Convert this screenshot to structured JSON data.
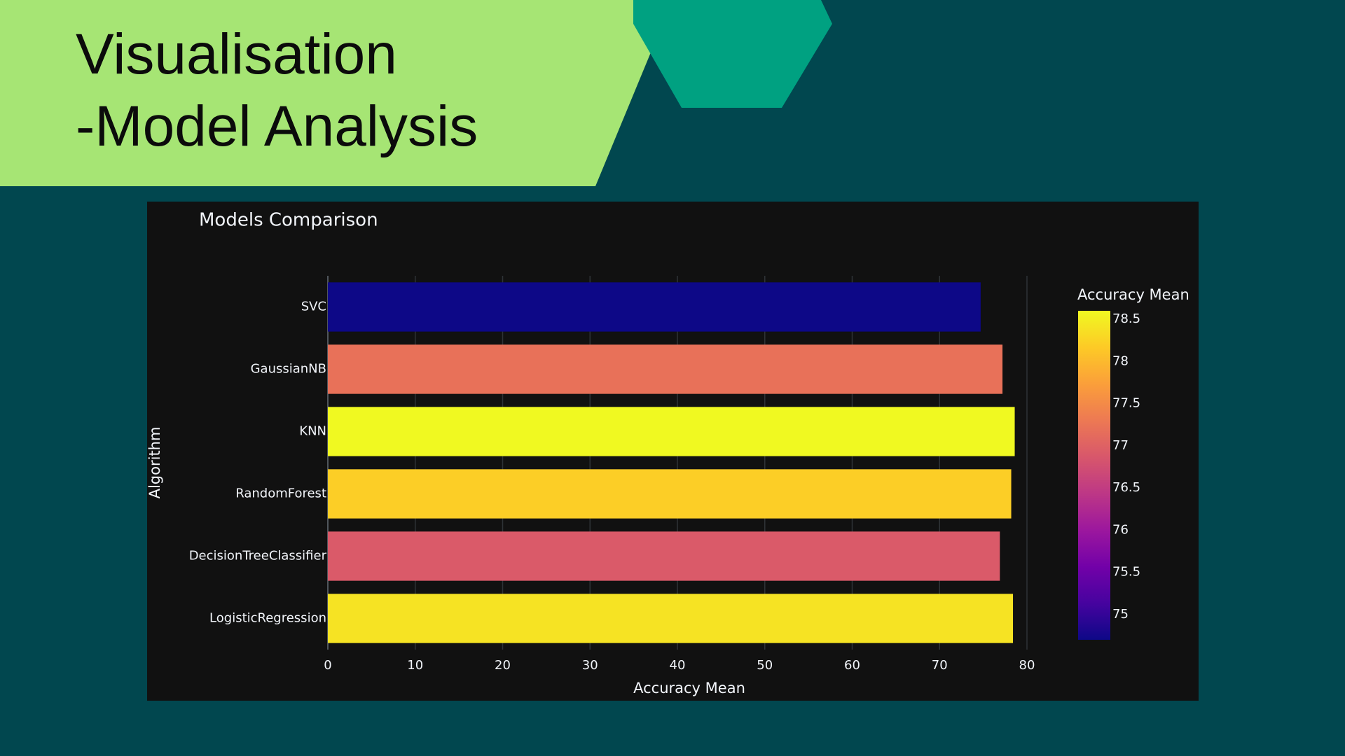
{
  "slide": {
    "title_line_1": "Visualisation",
    "title_line_2": "-Model Analysis",
    "colors": {
      "background": "#01474f",
      "banner": "#a6e574",
      "hexagon": "#00a181",
      "chart_background": "#111111",
      "title_text": "#0b0b0b"
    }
  },
  "chart_data": {
    "type": "bar",
    "orientation": "horizontal",
    "title": "Models Comparison",
    "xlabel": "Accuracy Mean",
    "ylabel": "Algorithm",
    "categories": [
      "SVC",
      "GaussianNB",
      "KNN",
      "RandomForest",
      "DecisionTreeClassifier",
      "LogisticRegression"
    ],
    "values": [
      74.7,
      77.2,
      78.6,
      78.2,
      76.9,
      78.4
    ],
    "xlim": [
      0,
      80
    ],
    "xticks": [
      0,
      10,
      20,
      30,
      40,
      50,
      60,
      70,
      80
    ],
    "grid": true,
    "colorscale": "plasma",
    "colorbar": {
      "title": "Accuracy Mean",
      "range": [
        74.7,
        78.6
      ],
      "ticks": [
        75,
        75.5,
        76,
        76.5,
        77,
        77.5,
        78,
        78.5
      ]
    }
  }
}
